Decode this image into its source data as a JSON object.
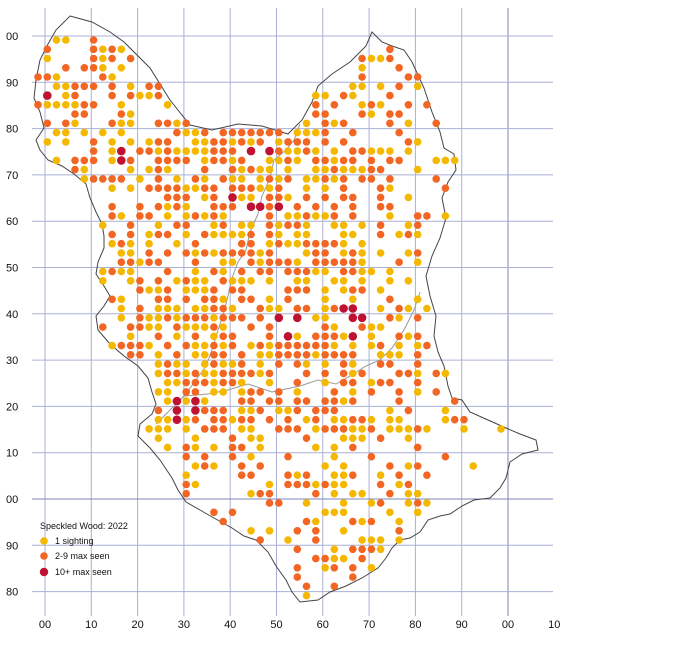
{
  "legend": {
    "title": "Speckled Wood:  2022",
    "items": [
      {
        "label": "1 sighting",
        "color": "#f5b800"
      },
      {
        "label": "2-9 max seen",
        "color": "#f26522"
      },
      {
        "label": "10+ max seen",
        "color": "#bf1131"
      }
    ]
  },
  "colors": {
    "gridline": "#aab0d4",
    "major_gridline": "#7f86b8",
    "boundary": "#444444",
    "inner_boundary": "#999999",
    "low": "#f5b800",
    "mid": "#f26522",
    "high": "#bf1131"
  },
  "y_labels": [
    "00",
    "90",
    "80",
    "70",
    "60",
    "50",
    "40",
    "30",
    "20",
    "10",
    "00",
    "90",
    "80"
  ],
  "x_labels": [
    "00",
    "10",
    "20",
    "30",
    "40",
    "50",
    "60",
    "70",
    "80",
    "90",
    "00",
    "10"
  ]
}
